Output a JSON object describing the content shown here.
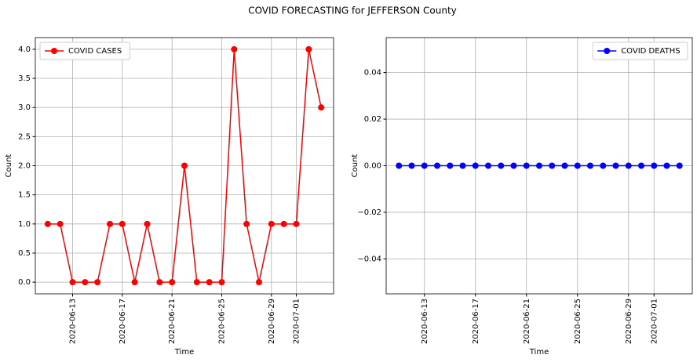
{
  "title": "COVID FORECASTING for JEFFERSON County",
  "chart_data": [
    {
      "type": "line",
      "xlabel": "Time",
      "ylabel": "Count",
      "grid": true,
      "legend": "upper left",
      "x": [
        "2020-06-11",
        "2020-06-12",
        "2020-06-13",
        "2020-06-14",
        "2020-06-15",
        "2020-06-16",
        "2020-06-17",
        "2020-06-18",
        "2020-06-19",
        "2020-06-20",
        "2020-06-21",
        "2020-06-22",
        "2020-06-23",
        "2020-06-24",
        "2020-06-25",
        "2020-06-26",
        "2020-06-27",
        "2020-06-28",
        "2020-06-29",
        "2020-06-30",
        "2020-07-01",
        "2020-07-02",
        "2020-07-03"
      ],
      "series": [
        {
          "name": "COVID CASES",
          "color": "#ff0000",
          "values": [
            1,
            1,
            0,
            0,
            0,
            1,
            1,
            0,
            1,
            0,
            0,
            2,
            0,
            0,
            0,
            4,
            1,
            0,
            1,
            1,
            1,
            4,
            3
          ]
        }
      ],
      "xlim": [
        "2020-06-10",
        "2020-07-04"
      ],
      "xticks": [
        "2020-06-13",
        "2020-06-17",
        "2020-06-21",
        "2020-06-25",
        "2020-06-29",
        "2020-07-01"
      ],
      "ylim": [
        -0.2,
        4.2
      ],
      "yticks": [
        {
          "value": 0,
          "label": "0.0"
        },
        {
          "value": 0.5,
          "label": "0.5"
        },
        {
          "value": 1,
          "label": "1.0"
        },
        {
          "value": 1.5,
          "label": "1.5"
        },
        {
          "value": 2,
          "label": "2.0"
        },
        {
          "value": 2.5,
          "label": "2.5"
        },
        {
          "value": 3,
          "label": "3.0"
        },
        {
          "value": 3.5,
          "label": "3.5"
        },
        {
          "value": 4,
          "label": "4.0"
        }
      ]
    },
    {
      "type": "line",
      "xlabel": "Time",
      "ylabel": "Count",
      "grid": true,
      "legend": "upper right",
      "x": [
        "2020-06-11",
        "2020-06-12",
        "2020-06-13",
        "2020-06-14",
        "2020-06-15",
        "2020-06-16",
        "2020-06-17",
        "2020-06-18",
        "2020-06-19",
        "2020-06-20",
        "2020-06-21",
        "2020-06-22",
        "2020-06-23",
        "2020-06-24",
        "2020-06-25",
        "2020-06-26",
        "2020-06-27",
        "2020-06-28",
        "2020-06-29",
        "2020-06-30",
        "2020-07-01",
        "2020-07-02",
        "2020-07-03"
      ],
      "series": [
        {
          "name": "COVID DEATHS",
          "color": "#0000ff",
          "values": [
            0,
            0,
            0,
            0,
            0,
            0,
            0,
            0,
            0,
            0,
            0,
            0,
            0,
            0,
            0,
            0,
            0,
            0,
            0,
            0,
            0,
            0,
            0
          ]
        }
      ],
      "xlim": [
        "2020-06-10",
        "2020-07-04"
      ],
      "xticks": [
        "2020-06-13",
        "2020-06-17",
        "2020-06-21",
        "2020-06-25",
        "2020-06-29",
        "2020-07-01"
      ],
      "ylim": [
        -0.055,
        0.055
      ],
      "yticks": [
        {
          "value": -0.04,
          "label": "−0.04"
        },
        {
          "value": -0.02,
          "label": "−0.02"
        },
        {
          "value": 0,
          "label": "0.00"
        },
        {
          "value": 0.02,
          "label": "0.02"
        },
        {
          "value": 0.04,
          "label": "0.04"
        }
      ]
    }
  ]
}
